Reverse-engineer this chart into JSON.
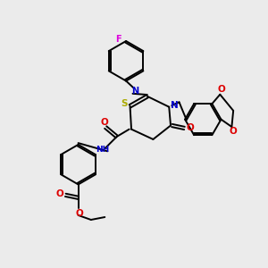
{
  "background_color": "#ebebeb",
  "fig_size": [
    3.0,
    3.0
  ],
  "dpi": 100,
  "atom_colors": {
    "C": "#000000",
    "N": "#0000cc",
    "O": "#dd0000",
    "S": "#aaaa00",
    "F": "#dd00dd",
    "H": "#000000"
  },
  "bond_color": "#000000",
  "bond_lw": 1.4
}
